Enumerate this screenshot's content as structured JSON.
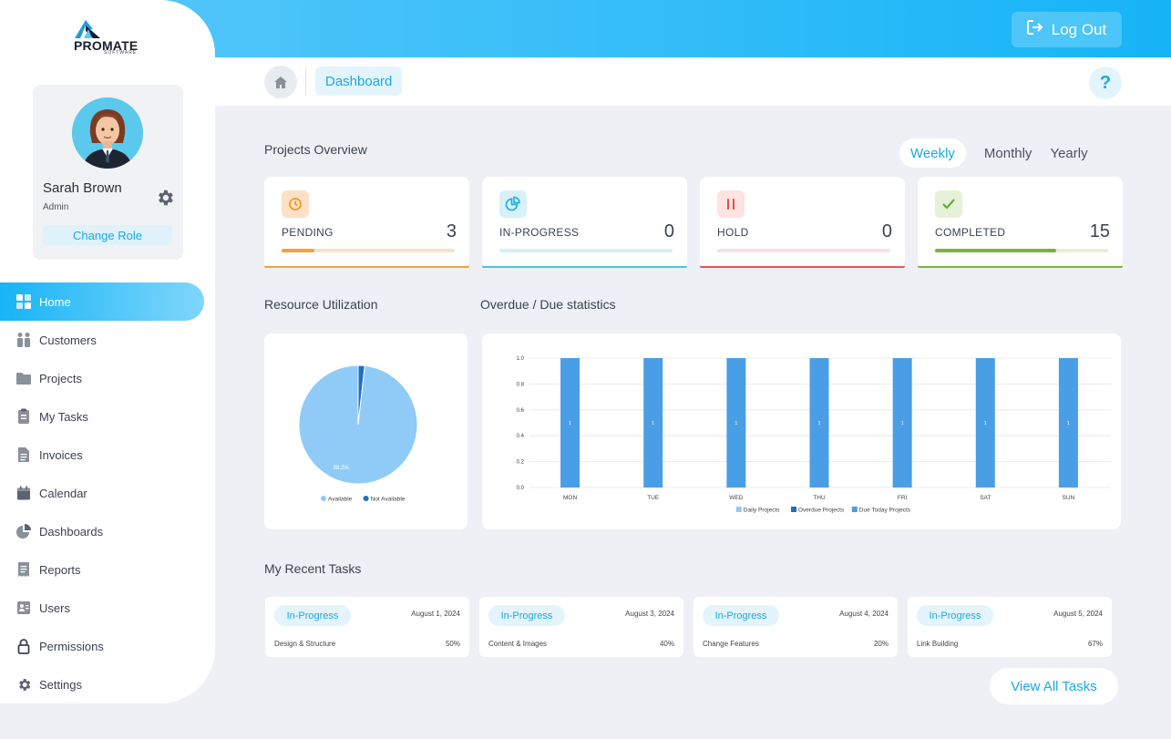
{
  "header": {
    "logout_label": "Log Out"
  },
  "breadcrumb": {
    "current": "Dashboard",
    "help": "?"
  },
  "brand": {
    "name": "PROMATE",
    "sub": "SOFTWARE"
  },
  "profile": {
    "name": "Sarah Brown",
    "role": "Admin",
    "change_role": "Change Role"
  },
  "nav": [
    {
      "label": "Home",
      "icon": "grid-icon"
    },
    {
      "label": "Customers",
      "icon": "people-icon"
    },
    {
      "label": "Projects",
      "icon": "folder-icon"
    },
    {
      "label": "My Tasks",
      "icon": "clipboard-icon"
    },
    {
      "label": "Invoices",
      "icon": "document-icon"
    },
    {
      "label": "Calendar",
      "icon": "calendar-icon"
    },
    {
      "label": "Dashboards",
      "icon": "pie-icon"
    },
    {
      "label": "Reports",
      "icon": "receipt-icon"
    },
    {
      "label": "Users",
      "icon": "contact-card-icon"
    },
    {
      "label": "Permissions",
      "icon": "lock-icon"
    },
    {
      "label": "Settings",
      "icon": "gear-icon"
    }
  ],
  "overview": {
    "title": "Projects Overview",
    "tabs": [
      "Weekly",
      "Monthly",
      "Yearly"
    ],
    "active_tab": "Weekly",
    "stats": [
      {
        "label": "PENDING",
        "count": "3",
        "progress": 0.19,
        "color": "#f5a03c",
        "track": "#fae3c8",
        "icon_bg": "#fde1c6",
        "icon": "clock-icon"
      },
      {
        "label": "IN-PROGRESS",
        "count": "0",
        "progress": 0,
        "color": "#4cc3e8",
        "track": "#d5f0f8",
        "icon_bg": "#d7f1fb",
        "icon": "pie-chart-icon"
      },
      {
        "label": "HOLD",
        "count": "0",
        "progress": 0,
        "color": "#e8584f",
        "track": "#f7e3e1",
        "icon_bg": "#fde3e1",
        "icon": "pause-icon"
      },
      {
        "label": "COMPLETED",
        "count": "15",
        "progress": 0.7,
        "color": "#79b53a",
        "track": "#e3f0d6",
        "icon_bg": "#e5f2d7",
        "icon": "check-icon"
      }
    ]
  },
  "resource": {
    "title": "Resource Utilization",
    "legend": [
      "Available",
      "Not Available"
    ],
    "slice_label": "98.2%",
    "colors": [
      "#90cbf7",
      "#1e6fc7"
    ]
  },
  "overdue": {
    "title": "Overdue / Due statistics",
    "legend": [
      "Daily Projects",
      "Overdue Projects",
      "Due Today Projects"
    ],
    "legend_colors": [
      "#90cbf7",
      "#1e6fc7",
      "#4a9ee6"
    ]
  },
  "chart_data": [
    {
      "type": "pie",
      "labels": [
        "Available",
        "Not Available"
      ],
      "values": [
        98.2,
        1.8
      ],
      "data_labels": [
        "98.2%",
        ""
      ]
    },
    {
      "type": "bar",
      "categories": [
        "MON",
        "TUE",
        "WED",
        "THU",
        "FRI",
        "SAT",
        "SUN"
      ],
      "series": [
        {
          "name": "Daily Projects",
          "values": [
            0,
            0,
            0,
            0,
            0,
            0,
            0
          ]
        },
        {
          "name": "Overdue Projects",
          "values": [
            0,
            0,
            0,
            0,
            0,
            0,
            0
          ]
        },
        {
          "name": "Due Today Projects",
          "values": [
            1,
            1,
            1,
            1,
            1,
            1,
            1
          ]
        }
      ],
      "ylim": [
        0,
        1.0
      ],
      "yticks": [
        "0.0",
        "0.2",
        "0.4",
        "0.6",
        "0.8",
        "1.0"
      ],
      "data_labels": [
        "1",
        "1",
        "1",
        "1",
        "1",
        "1",
        "1"
      ],
      "grid": true,
      "legend": "bottom"
    }
  ],
  "tasks": {
    "title": "My Recent Tasks",
    "items": [
      {
        "status": "In-Progress",
        "date": "August 1, 2024",
        "name": "Design & Structure",
        "percent": "50%"
      },
      {
        "status": "In-Progress",
        "date": "August 3, 2024",
        "name": "Content & Images",
        "percent": "40%"
      },
      {
        "status": "In-Progress",
        "date": "August 4, 2024",
        "name": "Change Features",
        "percent": "20%"
      },
      {
        "status": "In-Progress",
        "date": "August 5, 2024",
        "name": "Link Building",
        "percent": "67%"
      }
    ],
    "view_all": "View All Tasks"
  }
}
